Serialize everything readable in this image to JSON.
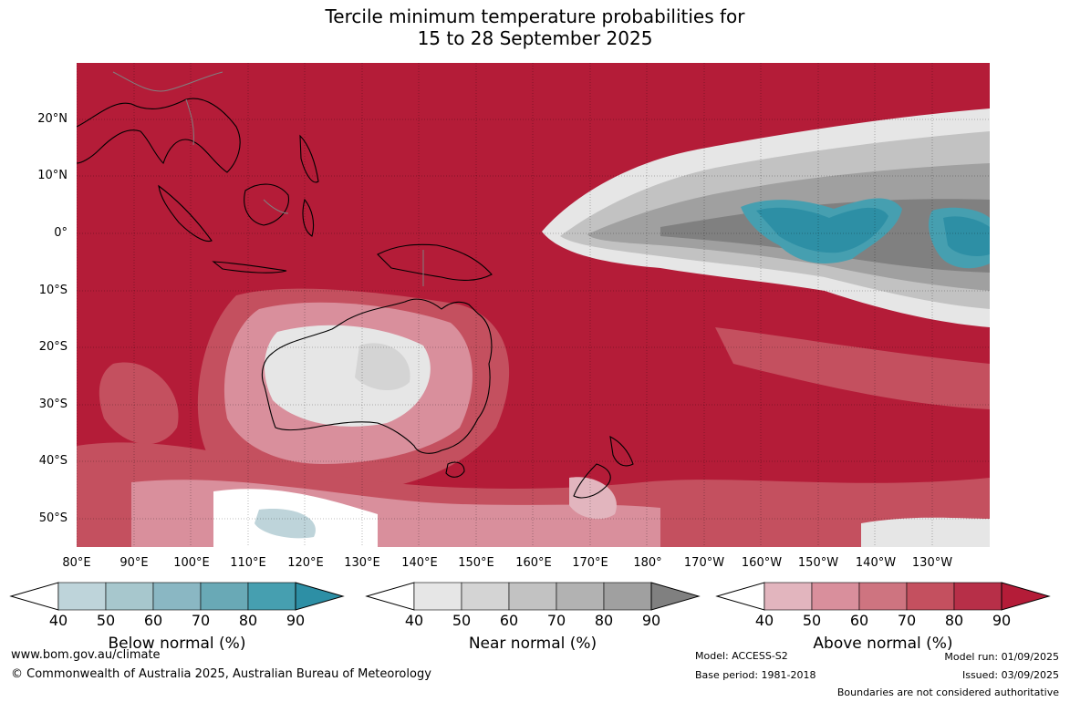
{
  "title": {
    "line1": "Tercile minimum temperature probabilities for",
    "line2": "15 to 28 September 2025"
  },
  "map": {
    "region": "Australia, Maritime Continent and western/central Pacific",
    "lat_labels": [
      "20°N",
      "10°N",
      "0°",
      "10°S",
      "20°S",
      "30°S",
      "40°S",
      "50°S"
    ],
    "lon_labels": [
      "80°E",
      "90°E",
      "100°E",
      "110°E",
      "120°E",
      "130°E",
      "140°E",
      "150°E",
      "160°E",
      "170°E",
      "180°",
      "170°W",
      "160°W",
      "150°W",
      "140°W",
      "130°W"
    ],
    "colors": {
      "dominant_above": "#b41c38",
      "near_grey": "#a0a0a0",
      "below_teal": "#2d8fa5",
      "coast": "#000000",
      "border": "#808080"
    }
  },
  "colorbars": [
    {
      "title": "Below normal (%)",
      "ticks": [
        "40",
        "50",
        "60",
        "70",
        "80",
        "90"
      ],
      "colors": [
        "#ffffff",
        "#bed4da",
        "#a7c7cd",
        "#8ab7c3",
        "#69a9b6",
        "#469fb0",
        "#2d8fa5"
      ]
    },
    {
      "title": "Near normal (%)",
      "ticks": [
        "40",
        "50",
        "60",
        "70",
        "80",
        "90"
      ],
      "colors": [
        "#ffffff",
        "#e6e6e6",
        "#d4d4d4",
        "#c2c2c2",
        "#b2b2b2",
        "#a0a0a0",
        "#808080"
      ]
    },
    {
      "title": "Above normal (%)",
      "ticks": [
        "40",
        "50",
        "60",
        "70",
        "80",
        "90"
      ],
      "colors": [
        "#ffffff",
        "#e2b5be",
        "#d98f9c",
        "#ce7480",
        "#c4505f",
        "#b72f48",
        "#b41c38"
      ]
    }
  ],
  "footer": {
    "url": "www.bom.gov.au/climate",
    "copyright": "© Commonwealth of Australia 2025, Australian Bureau of Meteorology",
    "model": "Model: ACCESS-S2",
    "base_period": "Base period: 1981-2018",
    "model_run": "Model run: 01/09/2025",
    "issued": "Issued: 03/09/2025",
    "disclaimer": "Boundaries are not considered authoritative"
  }
}
